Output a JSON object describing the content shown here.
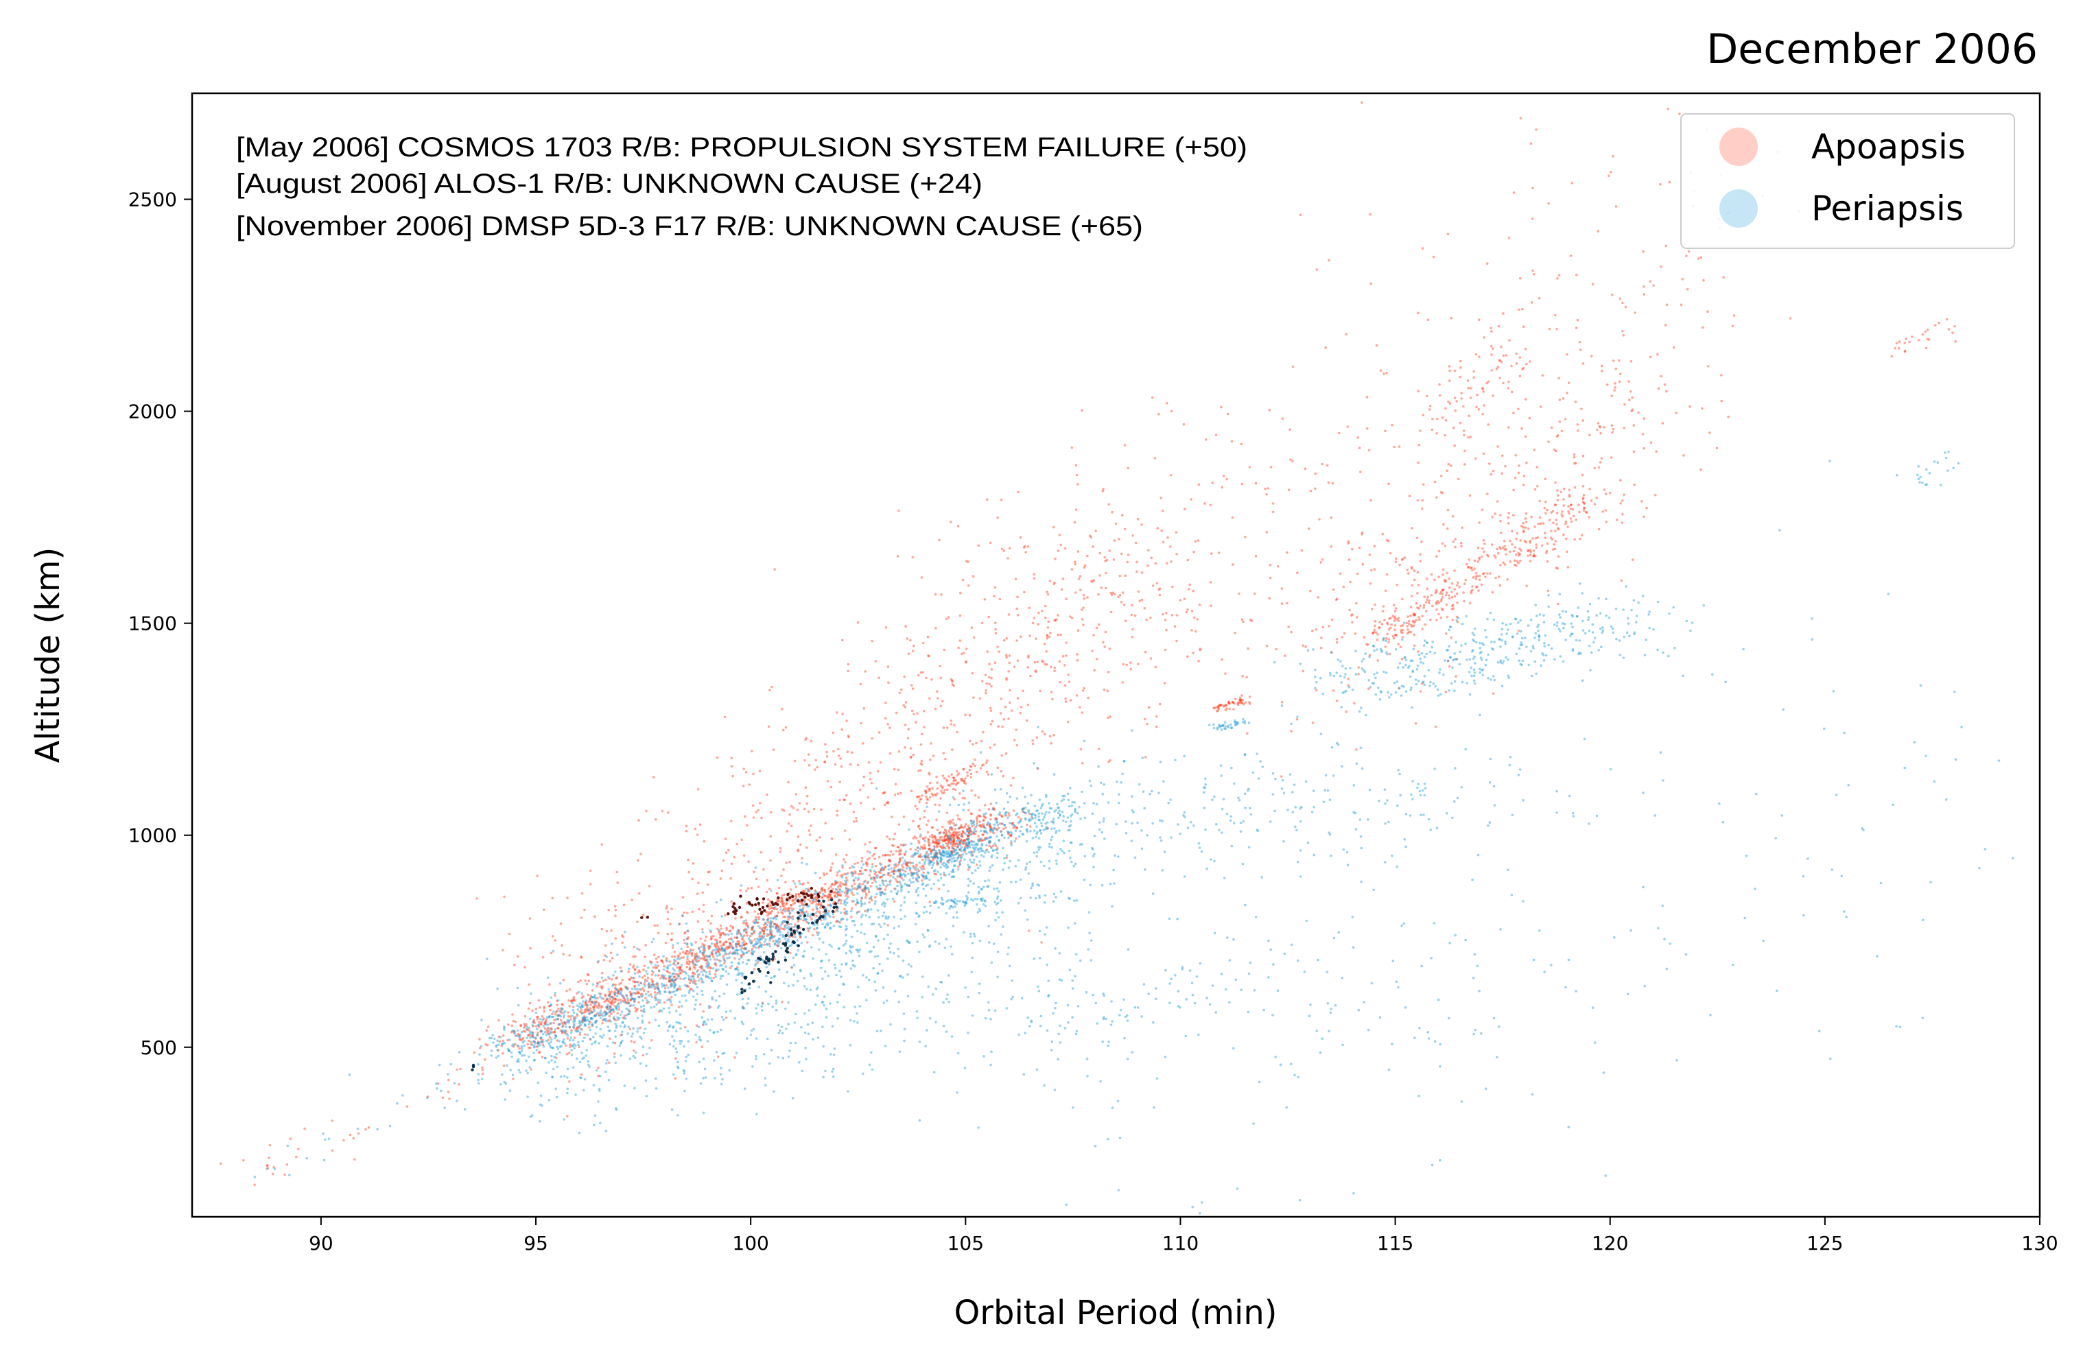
{
  "chart_data": {
    "type": "scatter",
    "title": "December 2006",
    "xlabel": "Orbital Period (min)",
    "ylabel": "Altitude (km)",
    "xlim": [
      87,
      130
    ],
    "ylim": [
      100,
      2750
    ],
    "x_ticks": [
      90,
      95,
      100,
      105,
      110,
      115,
      120,
      125,
      130
    ],
    "y_ticks": [
      500,
      1000,
      1500,
      2000,
      2500
    ],
    "grid": false,
    "legend_position": "top-right",
    "annotations": [
      "[May 2006]  COSMOS 1703 R/B: PROPULSION SYSTEM FAILURE (+50)",
      "[August 2006]  ALOS-1 R/B: UNKNOWN CAUSE (+24)",
      "[November 2006]  DMSP 5D-3 F17 R/B: UNKNOWN CAUSE (+65)"
    ],
    "colors": {
      "apoapsis": "#ff3a1a",
      "periapsis": "#1f9bd6",
      "event_apoapsis": "#5a0a00",
      "event_periapsis": "#062a45"
    },
    "series": [
      {
        "name": "Apoapsis",
        "clusters": [
          {
            "x0": 94.5,
            "y0": 510,
            "x1": 106,
            "y1": 1050,
            "n": 1400,
            "spread": 22,
            "jitter": 0.5
          },
          {
            "x0": 96,
            "y0": 600,
            "x1": 110,
            "y1": 1700,
            "n": 900,
            "spread": 140,
            "jitter": 1.2
          },
          {
            "x0": 104,
            "y0": 1080,
            "x1": 105.4,
            "y1": 1170,
            "n": 80,
            "spread": 8,
            "jitter": 0.15
          },
          {
            "x0": 104.3,
            "y0": 975,
            "x1": 105.2,
            "y1": 1010,
            "n": 120,
            "spread": 10,
            "jitter": 0.2
          },
          {
            "x0": 100.2,
            "y0": 830,
            "x1": 101.8,
            "y1": 860,
            "n": 60,
            "spread": 10,
            "jitter": 0.2
          },
          {
            "x0": 110.8,
            "y0": 1295,
            "x1": 111.5,
            "y1": 1320,
            "n": 50,
            "spread": 6,
            "jitter": 0.1
          },
          {
            "x0": 114.5,
            "y0": 1460,
            "x1": 119.5,
            "y1": 1790,
            "n": 300,
            "spread": 25,
            "jitter": 0.3
          },
          {
            "x0": 113,
            "y0": 1420,
            "x1": 121,
            "y1": 2000,
            "n": 350,
            "spread": 120,
            "jitter": 0.8
          },
          {
            "x0": 105,
            "y0": 1300,
            "x1": 123,
            "y1": 2500,
            "n": 350,
            "spread": 200,
            "jitter": 1.5
          },
          {
            "x0": 88.5,
            "y0": 200,
            "x1": 94.5,
            "y1": 490,
            "n": 40,
            "spread": 25,
            "jitter": 0.4
          },
          {
            "x0": 116,
            "y0": 2000,
            "x1": 118,
            "y1": 2120,
            "n": 60,
            "spread": 30,
            "jitter": 0.4
          },
          {
            "x0": 126.5,
            "y0": 2140,
            "x1": 128,
            "y1": 2210,
            "n": 25,
            "spread": 15,
            "jitter": 0.2
          }
        ]
      },
      {
        "name": "Periapsis",
        "clusters": [
          {
            "x0": 94.5,
            "y0": 490,
            "x1": 107,
            "y1": 1060,
            "n": 1200,
            "spread": 20,
            "jitter": 0.5
          },
          {
            "x0": 95,
            "y0": 450,
            "x1": 108,
            "y1": 1000,
            "n": 900,
            "spread": 90,
            "jitter": 1.0
          },
          {
            "x0": 97,
            "y0": 450,
            "x1": 112,
            "y1": 680,
            "n": 350,
            "spread": 60,
            "jitter": 3.5
          },
          {
            "x0": 104.2,
            "y0": 940,
            "x1": 105.2,
            "y1": 980,
            "n": 100,
            "spread": 10,
            "jitter": 0.2
          },
          {
            "x0": 104.5,
            "y0": 840,
            "x1": 105.5,
            "y1": 845,
            "n": 40,
            "spread": 5,
            "jitter": 0.25
          },
          {
            "x0": 110.9,
            "y0": 1255,
            "x1": 111.5,
            "y1": 1268,
            "n": 35,
            "spread": 5,
            "jitter": 0.1
          },
          {
            "x0": 113.5,
            "y0": 1350,
            "x1": 120.5,
            "y1": 1510,
            "n": 400,
            "spread": 40,
            "jitter": 0.9
          },
          {
            "x0": 107,
            "y0": 1050,
            "x1": 116,
            "y1": 1080,
            "n": 250,
            "spread": 70,
            "jitter": 2.2
          },
          {
            "x0": 108,
            "y0": 300,
            "x1": 128,
            "y1": 1200,
            "n": 200,
            "spread": 300,
            "jitter": 4.0
          },
          {
            "x0": 88.5,
            "y0": 190,
            "x1": 94.5,
            "y1": 480,
            "n": 30,
            "spread": 20,
            "jitter": 0.4
          },
          {
            "x0": 127,
            "y0": 1840,
            "x1": 128,
            "y1": 1880,
            "n": 20,
            "spread": 15,
            "jitter": 0.2
          }
        ]
      }
    ],
    "event_points": [
      {
        "series": "Apoapsis",
        "x0": 99.8,
        "y0": 830,
        "x1": 101.8,
        "y1": 860,
        "n": 50,
        "spread": 10,
        "jitter": 0.3
      },
      {
        "series": "Periapsis",
        "x0": 99.7,
        "y0": 640,
        "x1": 101.9,
        "y1": 840,
        "n": 65,
        "spread": 12,
        "jitter": 0.15
      },
      {
        "series": "Apoapsis",
        "x0": 97.5,
        "y0": 800,
        "x1": 97.6,
        "y1": 805,
        "n": 2,
        "spread": 3,
        "jitter": 0.05
      },
      {
        "series": "Periapsis",
        "x0": 93.5,
        "y0": 450,
        "x1": 93.6,
        "y1": 455,
        "n": 3,
        "spread": 3,
        "jitter": 0.05
      }
    ]
  },
  "legend": {
    "apoapsis_label": "Apoapsis",
    "periapsis_label": "Periapsis"
  }
}
